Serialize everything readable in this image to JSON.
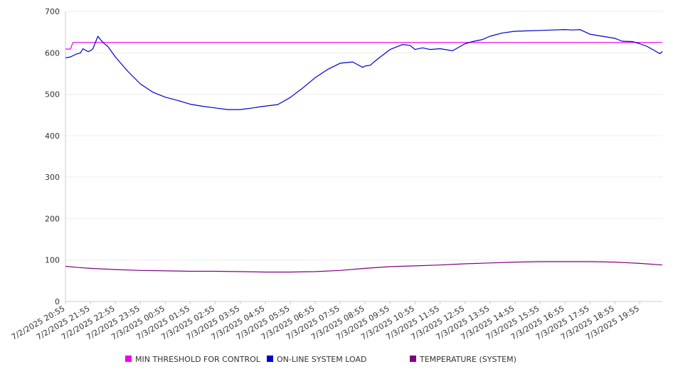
{
  "chart_data": {
    "type": "line",
    "title": "",
    "xlabel": "",
    "ylabel": "",
    "ylim": [
      0,
      700
    ],
    "yticks": [
      "0",
      "100",
      "200",
      "300",
      "400",
      "500",
      "600",
      "700"
    ],
    "grid": true,
    "legend_position": "bottom",
    "categories": [
      "7/2/2025 20:55",
      "7/2/2025 21:55",
      "7/2/2025 22:55",
      "7/2/2025 23:55",
      "7/3/2025 00:55",
      "7/3/2025 01:55",
      "7/3/2025 02:55",
      "7/3/2025 03:55",
      "7/3/2025 04:55",
      "7/3/2025 05:55",
      "7/3/2025 06:55",
      "7/3/2025 07:55",
      "7/3/2025 08:55",
      "7/3/2025 09:55",
      "7/3/2025 10:55",
      "7/3/2025 11:55",
      "7/3/2025 12:55",
      "7/3/2025 13:55",
      "7/3/2025 14:55",
      "7/3/2025 15:55",
      "7/3/2025 16:55",
      "7/3/2025 17:55",
      "7/3/2025 18:55",
      "7/3/2025 19:55"
    ],
    "series": [
      {
        "name": "MIN THRESHOLD FOR CONTROL",
        "color": "#ee00ee",
        "x": [
          0,
          0.2,
          0.3,
          23.9
        ],
        "values": [
          609,
          609,
          625,
          625
        ]
      },
      {
        "name": "ON-LINE SYSTEM LOAD",
        "color": "#0000cc",
        "x": [
          0,
          0.2,
          0.4,
          0.6,
          0.7,
          0.9,
          1.0,
          1.1,
          1.3,
          1.4,
          1.5,
          1.7,
          2.0,
          2.5,
          3.0,
          3.5,
          4.0,
          4.5,
          5.0,
          5.5,
          6.0,
          6.5,
          7.0,
          7.5,
          7.8,
          8.5,
          9.0,
          9.5,
          10.0,
          10.5,
          11.0,
          11.5,
          11.9,
          12.0,
          12.2,
          12.5,
          13.0,
          13.5,
          13.8,
          14.0,
          14.3,
          14.6,
          15.0,
          15.5,
          16.0,
          16.3,
          16.7,
          17.0,
          17.5,
          18.0,
          18.5,
          19.0,
          19.5,
          20.0,
          20.3,
          20.6,
          21.0,
          21.5,
          22.0,
          22.3,
          22.7,
          23.0,
          23.3,
          23.6,
          23.8,
          23.9
        ],
        "values": [
          588,
          590,
          596,
          600,
          610,
          603,
          605,
          610,
          640,
          632,
          625,
          615,
          590,
          555,
          525,
          505,
          493,
          485,
          476,
          471,
          467,
          463,
          463,
          467,
          470,
          475,
          492,
          515,
          540,
          560,
          575,
          578,
          565,
          568,
          570,
          585,
          608,
          620,
          618,
          608,
          612,
          608,
          610,
          605,
          622,
          627,
          632,
          640,
          648,
          652,
          653,
          654,
          655,
          656,
          655,
          656,
          645,
          640,
          635,
          628,
          627,
          622,
          615,
          605,
          598,
          603
        ]
      },
      {
        "name": "TEMPERATURE (SYSTEM)",
        "color": "#800080",
        "x": [
          0,
          0.5,
          1.0,
          2.0,
          3.0,
          4.0,
          5.0,
          6.0,
          7.0,
          8.0,
          9.0,
          10.0,
          11.0,
          12.0,
          13.0,
          14.0,
          15.0,
          16.0,
          17.0,
          18.0,
          19.0,
          20.0,
          21.0,
          22.0,
          23.0,
          23.9
        ],
        "values": [
          85,
          82,
          80,
          77,
          75,
          74,
          73,
          73,
          72,
          71,
          71,
          72,
          75,
          80,
          84,
          86,
          88,
          91,
          93,
          95,
          96,
          96,
          96,
          95,
          92,
          88
        ]
      }
    ]
  }
}
